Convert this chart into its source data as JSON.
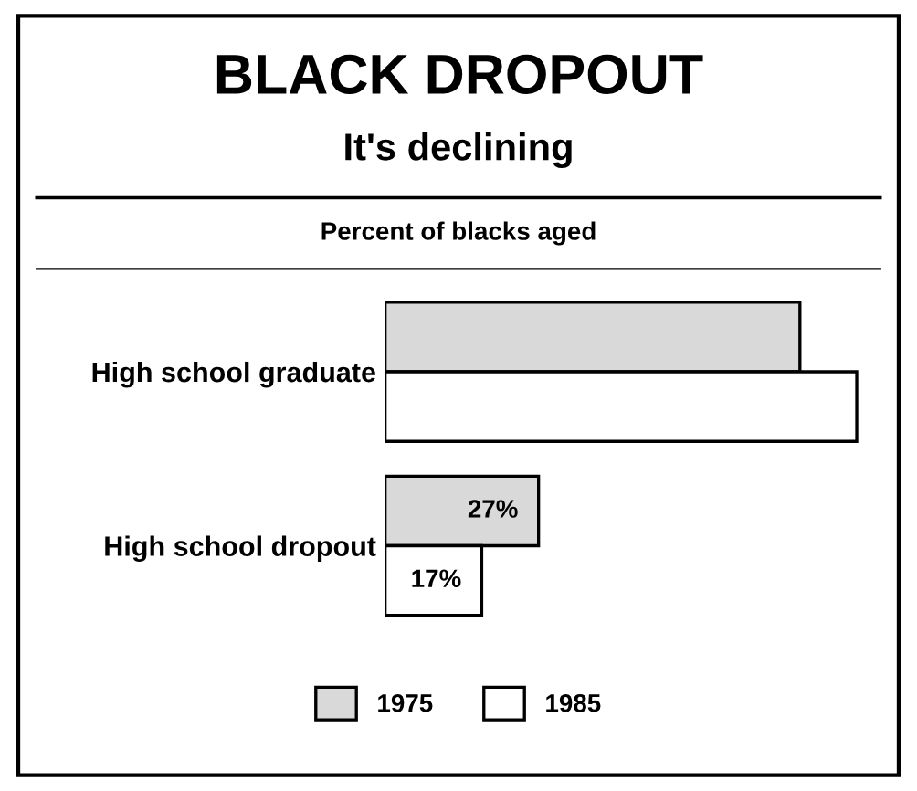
{
  "chart_data": {
    "type": "bar",
    "orientation": "horizontal",
    "title": "BLACK DROPOUT",
    "subtitle": "It's declining",
    "xlabel": "Percent of blacks aged",
    "categories": [
      "High school graduate",
      "High school dropout"
    ],
    "series": [
      {
        "name": "1975",
        "color": "#d9d9d9",
        "values": [
          73,
          27
        ],
        "value_labels": [
          null,
          "27%"
        ]
      },
      {
        "name": "1985",
        "color": "#ffffff",
        "values": [
          83,
          17
        ],
        "value_labels": [
          null,
          "17%"
        ]
      }
    ],
    "legend": "bottom",
    "grid": false
  }
}
